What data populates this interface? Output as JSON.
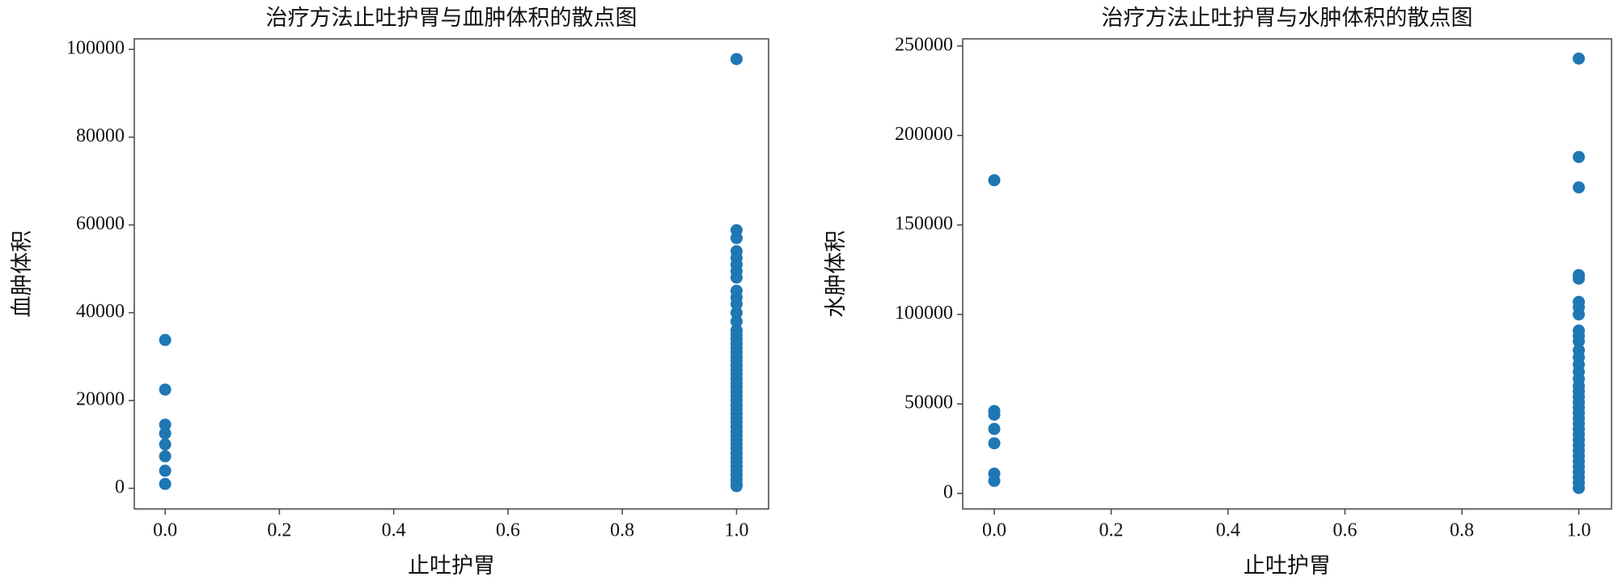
{
  "chart_data": [
    {
      "type": "scatter",
      "title": "治疗方法止吐护胃与血肿体积的散点图",
      "xlabel": "止吐护胃",
      "ylabel": "血肿体积",
      "color": "#1f77b4",
      "xlim": [
        -0.054,
        1.056
      ],
      "ylim": [
        -4700,
        102400
      ],
      "xticks": [
        {
          "value": 0,
          "label": "0.0"
        },
        0.2,
        0.4,
        0.6,
        0.8,
        {
          "value": 1,
          "label": "1.0"
        }
      ],
      "yticks": [
        0,
        20000,
        40000,
        60000,
        80000,
        100000
      ],
      "x": [
        0,
        0,
        0,
        0,
        0,
        0,
        0,
        0,
        1,
        1,
        1,
        1,
        1,
        1,
        1,
        1,
        1,
        1,
        1,
        1,
        1,
        1,
        1,
        1,
        1,
        1,
        1,
        1,
        1,
        1,
        1,
        1,
        1,
        1,
        1,
        1,
        1,
        1,
        1,
        1,
        1,
        1,
        1,
        1,
        1,
        1,
        1,
        1,
        1,
        1,
        1,
        1,
        1,
        1,
        1,
        1,
        1,
        1
      ],
      "values": [
        33800,
        22500,
        14500,
        12500,
        10000,
        7300,
        4000,
        1000,
        97800,
        58800,
        57000,
        54000,
        52500,
        51000,
        49500,
        48000,
        45000,
        43500,
        42000,
        40000,
        38000,
        36000,
        35000,
        34000,
        33000,
        32000,
        31000,
        30000,
        29000,
        28000,
        27000,
        26000,
        25000,
        24000,
        23000,
        22000,
        21000,
        20000,
        19000,
        18000,
        17000,
        16000,
        15000,
        14000,
        13000,
        12000,
        11000,
        10000,
        9000,
        8000,
        7000,
        6000,
        5000,
        4000,
        3000,
        2000,
        1000,
        500
      ]
    },
    {
      "type": "scatter",
      "title": "治疗方法止吐护胃与水肿体积的散点图",
      "xlabel": "止吐护胃",
      "ylabel": "水肿体积",
      "color": "#1f77b4",
      "xlim": [
        -0.054,
        1.056
      ],
      "ylim": [
        -8700,
        254000
      ],
      "xticks": [
        {
          "value": 0,
          "label": "0.0"
        },
        0.2,
        0.4,
        0.6,
        0.8,
        {
          "value": 1,
          "label": "1.0"
        }
      ],
      "yticks": [
        0,
        50000,
        100000,
        150000,
        200000,
        250000
      ],
      "x": [
        0,
        0,
        0,
        0,
        0,
        0,
        0,
        1,
        1,
        1,
        1,
        1,
        1,
        1,
        1,
        1,
        1,
        1,
        1,
        1,
        1,
        1,
        1,
        1,
        1,
        1,
        1,
        1,
        1,
        1,
        1,
        1,
        1,
        1,
        1,
        1,
        1,
        1,
        1,
        1,
        1,
        1,
        1
      ],
      "values": [
        175000,
        46000,
        44000,
        36000,
        28000,
        11000,
        7000,
        243000,
        188000,
        171000,
        122000,
        120000,
        107000,
        104000,
        100000,
        91000,
        88000,
        85000,
        80000,
        76000,
        72000,
        68000,
        64000,
        60000,
        57000,
        54000,
        51000,
        48000,
        45000,
        42000,
        39000,
        36000,
        33000,
        30000,
        27000,
        24000,
        21000,
        18000,
        15000,
        12000,
        9000,
        6000,
        3000
      ]
    }
  ]
}
